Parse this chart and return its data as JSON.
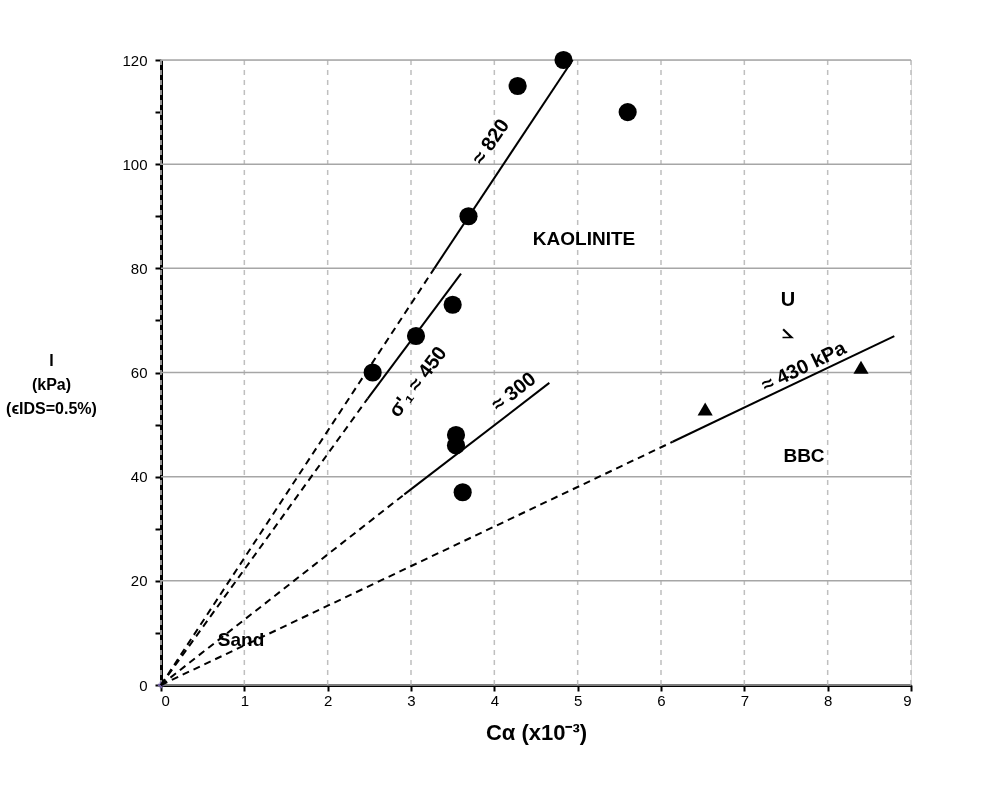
{
  "chart_data": {
    "type": "scatter",
    "xlabel": "Cα (x10⁻³)",
    "ylabel": "I\n(kPa)\n(ϵIDS=0.5%)",
    "xlim": [
      0,
      9
    ],
    "ylim": [
      0,
      120
    ],
    "xticks": [
      0,
      1,
      2,
      3,
      4,
      5,
      6,
      7,
      8,
      9
    ],
    "yticks": [
      0,
      {
        "value": 10,
        "label": null
      },
      20,
      {
        "value": 30,
        "label": null
      },
      40,
      {
        "value": 50,
        "label": null
      },
      60,
      {
        "value": 70,
        "label": null
      },
      80,
      {
        "value": 90,
        "label": null
      },
      100,
      {
        "value": 110,
        "label": null
      },
      120
    ],
    "grid": true,
    "series": [
      {
        "marker": "circle",
        "color": "#000000",
        "x": [
          4.83,
          4.28,
          5.6,
          3.69,
          3.5,
          3.06,
          2.54,
          3.54,
          3.54,
          3.62
        ],
        "values": [
          120,
          115,
          110,
          90,
          73,
          67,
          60,
          48,
          46,
          37
        ]
      },
      {
        "marker": "triangle",
        "color": "#000000",
        "x": [
          6.53,
          8.4
        ],
        "values": [
          53,
          61
        ]
      },
      {
        "marker": "cross",
        "color": "#7060a0",
        "x": [
          0
        ],
        "values": [
          0
        ]
      },
      {
        "type": "line",
        "line_style": "dashed",
        "color": "#000000",
        "x": [
          0,
          3.28
        ],
        "values": [
          0,
          80
        ]
      },
      {
        "type": "line",
        "line_style": "solid",
        "color": "#000000",
        "x": [
          3.28,
          4.94
        ],
        "values": [
          80,
          120
        ]
      },
      {
        "type": "line",
        "line_style": "dashed",
        "color": "#000000",
        "x": [
          0,
          2.48
        ],
        "values": [
          0,
          55
        ]
      },
      {
        "type": "line",
        "line_style": "solid",
        "color": "#000000",
        "x": [
          2.48,
          3.6
        ],
        "values": [
          55,
          79
        ]
      },
      {
        "type": "line",
        "line_style": "dashed",
        "color": "#000000",
        "x": [
          0,
          2.92
        ],
        "values": [
          0,
          36.6
        ]
      },
      {
        "type": "line",
        "line_style": "solid",
        "color": "#000000",
        "x": [
          2.92,
          4.66
        ],
        "values": [
          36.6,
          58
        ]
      },
      {
        "type": "line",
        "line_style": "dashed",
        "color": "#000000",
        "x": [
          0,
          6.14
        ],
        "values": [
          0,
          46.7
        ]
      },
      {
        "type": "line",
        "line_style": "solid",
        "color": "#000000",
        "x": [
          6.14,
          8.8
        ],
        "values": [
          46.7,
          67
        ]
      }
    ],
    "annotations": [
      "≈ 820",
      "σ'₁ ≈ 450",
      "≈ 300",
      "≈ 430 kPa",
      "U",
      "⦣",
      "KAOLINITE",
      "BBC",
      "Sand"
    ]
  }
}
